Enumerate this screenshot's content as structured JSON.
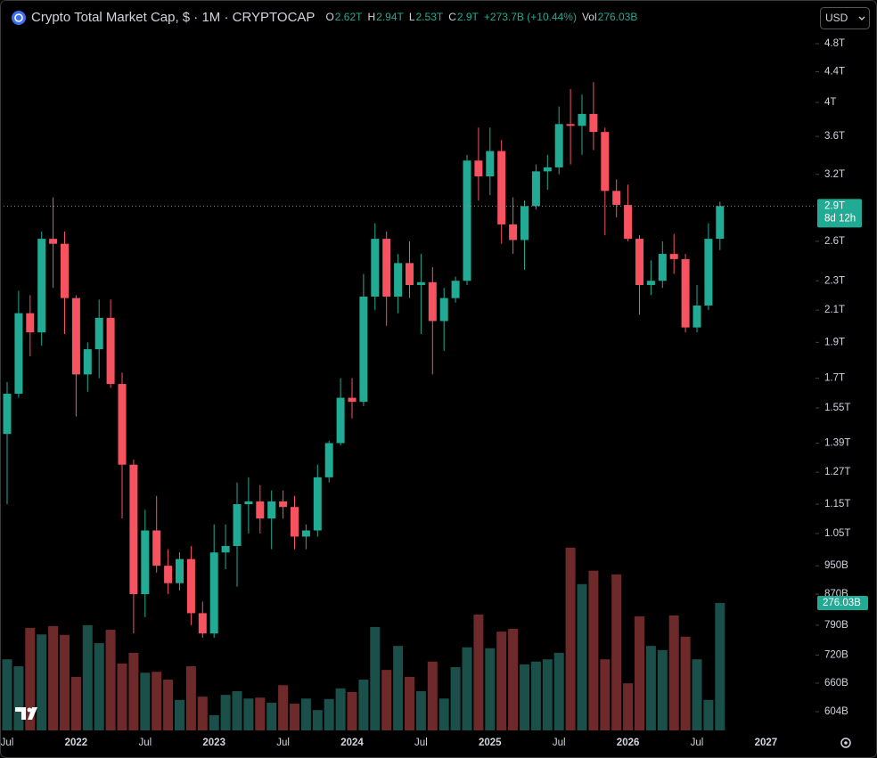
{
  "chart_data": {
    "type": "candlestick",
    "title": "Crypto Total Market Cap, $ · 1M · CRYPTOCAP",
    "ohlc_legend": [
      {
        "key": "O",
        "value": "2.62T"
      },
      {
        "key": "H",
        "value": "2.94T"
      },
      {
        "key": "L",
        "value": "2.53T"
      },
      {
        "key": "C",
        "value": "2.9T"
      }
    ],
    "change_label": "+273.7B (+10.44%)",
    "volume_legend": {
      "key": "Vol",
      "value": "276.03B"
    },
    "currency": "USD",
    "last_price_label": "2.9T",
    "countdown": "8d 12h",
    "volume_label": "276.03B",
    "categories": [
      "Jul",
      null,
      null,
      null,
      null,
      null,
      "2022",
      null,
      null,
      null,
      null,
      null,
      "Jul",
      null,
      null,
      null,
      null,
      null,
      "2023",
      null,
      null,
      null,
      null,
      null,
      "Jul",
      null,
      null,
      null,
      null,
      null,
      "2024",
      null,
      null,
      null,
      null,
      null,
      "Jul",
      null,
      null,
      null,
      null,
      null,
      "2025",
      null,
      null,
      null,
      null,
      null,
      "Jul",
      null,
      null,
      null,
      null,
      null,
      "2026",
      null,
      null,
      null,
      null,
      null,
      "Jul",
      null,
      null,
      null,
      null,
      null,
      "2027"
    ],
    "open": [
      1430,
      1620,
      2080,
      1960,
      2620,
      2580,
      2180,
      1720,
      1860,
      2050,
      1670,
      1300,
      870,
      1060,
      950,
      900,
      970,
      820,
      770,
      990,
      1010,
      1150,
      1160,
      1100,
      1160,
      1140,
      1040,
      1060,
      1250,
      1390,
      1600,
      1580,
      2190,
      2620,
      2190,
      2430,
      2270,
      2290,
      2030,
      2180,
      2300,
      3340,
      3180,
      3440,
      2740,
      2610,
      2900,
      3230,
      3270,
      3740,
      3720,
      3860,
      3650,
      3040,
      2910,
      2620,
      2270,
      2300,
      2500,
      2460,
      1990,
      2130,
      2620,
      null,
      null,
      null,
      null
    ],
    "high": [
      1680,
      2230,
      2200,
      2680,
      2980,
      2680,
      2200,
      1900,
      2170,
      2170,
      1730,
      1320,
      1130,
      1180,
      1000,
      990,
      1010,
      850,
      1080,
      1080,
      1230,
      1250,
      1220,
      1200,
      1200,
      1180,
      1080,
      1300,
      1400,
      1700,
      1700,
      2350,
      2750,
      2680,
      2500,
      2600,
      2500,
      2400,
      2250,
      2330,
      3400,
      3700,
      3700,
      3560,
      2980,
      2950,
      3300,
      3400,
      3950,
      4170,
      4100,
      4260,
      3700,
      3150,
      3100,
      2650,
      2450,
      2600,
      2660,
      2500,
      2270,
      2750,
      2940,
      null,
      null,
      null,
      null
    ],
    "low": [
      1150,
      1600,
      1820,
      1880,
      2250,
      1950,
      1510,
      1630,
      1700,
      1650,
      1100,
      770,
      810,
      930,
      870,
      880,
      790,
      760,
      760,
      940,
      890,
      1050,
      1050,
      1000,
      1100,
      1000,
      1000,
      1040,
      1230,
      1380,
      1500,
      1560,
      2100,
      2000,
      2080,
      2180,
      1950,
      1720,
      1850,
      2150,
      2270,
      2950,
      3000,
      2580,
      2500,
      2380,
      2870,
      3050,
      3200,
      3300,
      3400,
      3450,
      2650,
      2800,
      2600,
      2070,
      2200,
      2250,
      2350,
      1960,
      1960,
      2100,
      2530,
      null,
      null,
      null,
      null
    ],
    "close": [
      1620,
      2080,
      1960,
      2620,
      2580,
      2180,
      1720,
      1860,
      2050,
      1670,
      1300,
      870,
      1060,
      950,
      900,
      970,
      820,
      770,
      990,
      1010,
      1150,
      1160,
      1100,
      1160,
      1140,
      1040,
      1060,
      1250,
      1390,
      1600,
      1580,
      2190,
      2620,
      2190,
      2430,
      2270,
      2290,
      2030,
      2180,
      2300,
      3340,
      3180,
      3440,
      2740,
      2610,
      2900,
      3230,
      3270,
      3740,
      3720,
      3860,
      3650,
      3040,
      2910,
      2620,
      2270,
      2300,
      2500,
      2460,
      1990,
      2130,
      2620,
      2900,
      null,
      null,
      null,
      null
    ],
    "volume": [
      154,
      139,
      222,
      208,
      226,
      207,
      116,
      228,
      189,
      218,
      145,
      168,
      125,
      127,
      110,
      66,
      139,
      73,
      33,
      77,
      85,
      69,
      71,
      60,
      98,
      58,
      69,
      44,
      68,
      91,
      83,
      110,
      224,
      131,
      183,
      116,
      85,
      149,
      69,
      137,
      180,
      251,
      178,
      214,
      220,
      143,
      149,
      154,
      168,
      396,
      317,
      346,
      154,
      338,
      102,
      247,
      183,
      174,
      249,
      203,
      154,
      66,
      276.03,
      null,
      null,
      null,
      null
    ],
    "up_color": "#22ab94",
    "down_color": "#f7525f",
    "volume_up_color": "#1b4f4a",
    "volume_down_color": "#6e2a2a",
    "log_scale": true,
    "ylim": [
      570,
      4990
    ],
    "yticks": [
      {
        "value": 4800,
        "label": "4.8T"
      },
      {
        "value": 4400,
        "label": "4.4T"
      },
      {
        "value": 4000,
        "label": "4T"
      },
      {
        "value": 3600,
        "label": "3.6T"
      },
      {
        "value": 3200,
        "label": "3.2T"
      },
      {
        "value": 2600,
        "label": "2.6T"
      },
      {
        "value": 2300,
        "label": "2.3T"
      },
      {
        "value": 2100,
        "label": "2.1T"
      },
      {
        "value": 1900,
        "label": "1.9T"
      },
      {
        "value": 1700,
        "label": "1.7T"
      },
      {
        "value": 1550,
        "label": "1.55T"
      },
      {
        "value": 1390,
        "label": "1.39T"
      },
      {
        "value": 1270,
        "label": "1.27T"
      },
      {
        "value": 1150,
        "label": "1.15T"
      },
      {
        "value": 1050,
        "label": "1.05T"
      },
      {
        "value": 950,
        "label": "950B"
      },
      {
        "value": 870,
        "label": "870B"
      },
      {
        "value": 790,
        "label": "790B"
      },
      {
        "value": 720,
        "label": "720B"
      },
      {
        "value": 660,
        "label": "660B"
      },
      {
        "value": 604,
        "label": "604B"
      }
    ],
    "y2lim": [
      0,
      1515
    ]
  }
}
